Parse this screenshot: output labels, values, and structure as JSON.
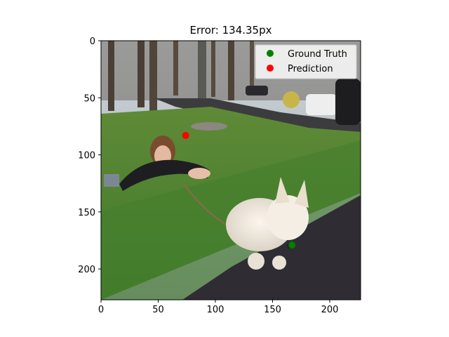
{
  "chart_data": {
    "type": "scatter",
    "title": "Error: 134.35px",
    "xlabel": "",
    "ylabel": "",
    "xlim": [
      0,
      227
    ],
    "ylim": [
      227,
      0
    ],
    "y_inverted": true,
    "xticks": [
      0,
      50,
      100,
      150,
      200
    ],
    "yticks": [
      0,
      50,
      100,
      150,
      200
    ],
    "background": "photo: woman lying on lawn talking on a phone holding a leash, white dog walking on a paved path",
    "grid": false,
    "legend_position": "top-right",
    "series": [
      {
        "name": "Ground Truth",
        "color": "#008000",
        "points": [
          [
            167,
            179
          ]
        ]
      },
      {
        "name": "Prediction",
        "color": "#ff0000",
        "points": [
          [
            74,
            83
          ]
        ]
      }
    ]
  }
}
